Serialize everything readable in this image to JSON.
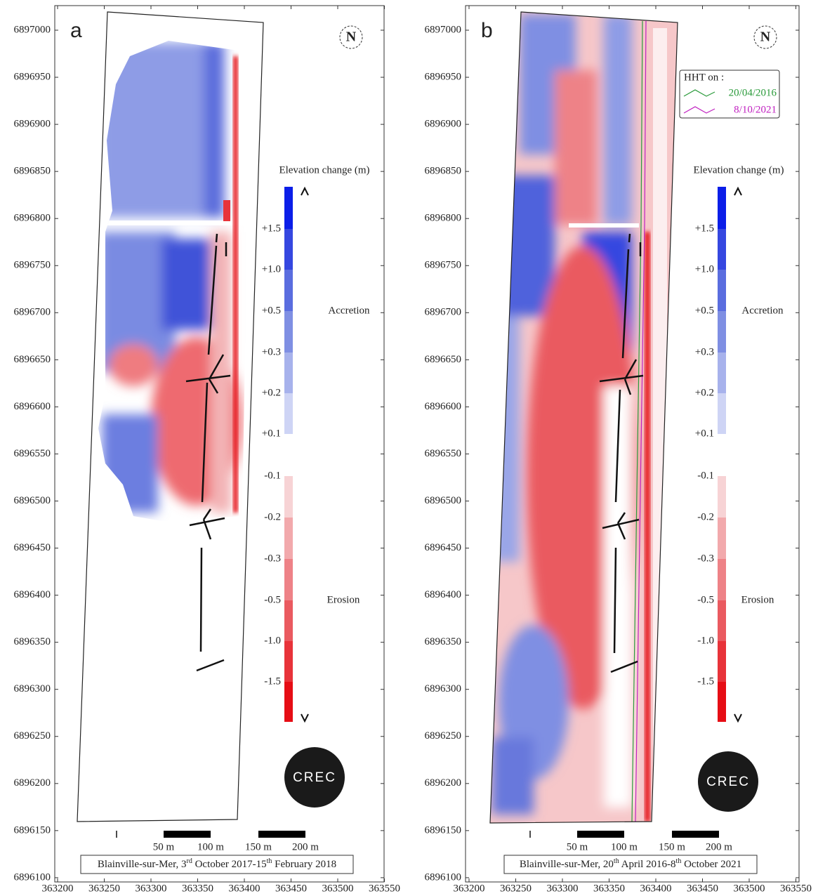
{
  "panels": [
    {
      "label": "a",
      "north": "N",
      "y_ticks": [
        6896100,
        6896150,
        6896200,
        6896250,
        6896300,
        6896350,
        6896400,
        6896450,
        6896500,
        6896550,
        6896600,
        6896650,
        6896700,
        6896750,
        6896800,
        6896850,
        6896900,
        6896950,
        6897000
      ],
      "x_ticks": [
        363200,
        363250,
        363300,
        363350,
        363400,
        363450,
        363500,
        363550
      ],
      "colorbar": {
        "title": "Elevation change (m)",
        "labels": [
          "+1.5",
          "+1.0",
          "+0.5",
          "+0.3",
          "+0.2",
          "+0.1",
          "-0.1",
          "-0.2",
          "-0.3",
          "-0.5",
          "-1.0",
          "-1.5"
        ],
        "accretion": "Accretion",
        "erosion": "Erosion"
      },
      "logo": "CREC",
      "scale_bar": [
        "50 m",
        "100 m",
        "150 m",
        "200 m"
      ],
      "caption": [
        "Blainville-sur-Mer, 3",
        "rd",
        " October 2017-15",
        "th",
        " February 2018"
      ]
    },
    {
      "label": "b",
      "north": "N",
      "y_ticks": [
        6896100,
        6896150,
        6896200,
        6896250,
        6896300,
        6896350,
        6896400,
        6896450,
        6896500,
        6896550,
        6896600,
        6896650,
        6896700,
        6896750,
        6896800,
        6896850,
        6896900,
        6896950,
        6897000
      ],
      "x_ticks": [
        363200,
        363250,
        363300,
        363350,
        363400,
        363450,
        363500,
        363550
      ],
      "legend": {
        "title": "HHT on :",
        "entries": [
          "20/04/2016",
          "8/10/2021"
        ]
      },
      "colorbar": {
        "title": "Elevation change (m)",
        "labels": [
          "+1.5",
          "+1.0",
          "+0.5",
          "+0.3",
          "+0.2",
          "+0.1",
          "-0.1",
          "-0.2",
          "-0.3",
          "-0.5",
          "-1.0",
          "-1.5"
        ],
        "accretion": "Accretion",
        "erosion": "Erosion"
      },
      "logo": "CREC",
      "scale_bar": [
        "50 m",
        "100 m",
        "150 m",
        "200 m"
      ],
      "caption": [
        "Blainville-sur-Mer, 20",
        "th",
        " April 2016-8",
        "th",
        " October 2021"
      ]
    }
  ]
}
